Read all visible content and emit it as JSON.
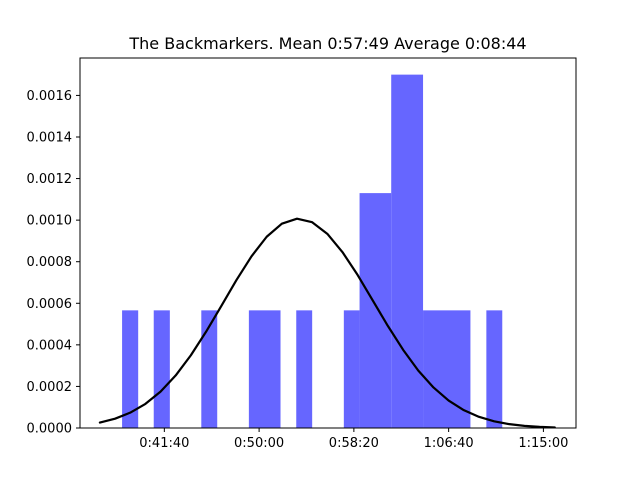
{
  "chart_data": {
    "type": "bar",
    "title": "The Backmarkers. Mean 0:57:49 Average 0:08:44",
    "xlabel": "",
    "ylabel": "",
    "x_unit": "seconds",
    "xlim": [
      2055,
      4672
    ],
    "ylim": [
      0,
      0.00178
    ],
    "x_ticks": [
      {
        "value": 2500,
        "label": "0:41:40"
      },
      {
        "value": 3000,
        "label": "0:50:00"
      },
      {
        "value": 3500,
        "label": "0:58:20"
      },
      {
        "value": 4000,
        "label": "1:06:40"
      },
      {
        "value": 4500,
        "label": "1:15:00"
      }
    ],
    "y_ticks": [
      {
        "value": 0.0,
        "label": "0.0000"
      },
      {
        "value": 0.0002,
        "label": "0.0002"
      },
      {
        "value": 0.0004,
        "label": "0.0004"
      },
      {
        "value": 0.0006,
        "label": "0.0006"
      },
      {
        "value": 0.0008,
        "label": "0.0008"
      },
      {
        "value": 0.001,
        "label": "0.0010"
      },
      {
        "value": 0.0012,
        "label": "0.0012"
      },
      {
        "value": 0.0014,
        "label": "0.0014"
      },
      {
        "value": 0.0016,
        "label": "0.0016"
      }
    ],
    "series": [
      {
        "kind": "histogram",
        "color": "#6666ff",
        "bins": [
          {
            "x0": 2277,
            "x1": 2362,
            "density": 0.000566
          },
          {
            "x0": 2444,
            "x1": 2529,
            "density": 0.000566
          },
          {
            "x0": 2695,
            "x1": 2779,
            "density": 0.000566
          },
          {
            "x0": 2946,
            "x1": 3113,
            "density": 0.000566
          },
          {
            "x0": 3196,
            "x1": 3280,
            "density": 0.000566
          },
          {
            "x0": 3447,
            "x1": 3530,
            "density": 0.000566
          },
          {
            "x0": 3530,
            "x1": 3697,
            "density": 0.00113
          },
          {
            "x0": 3697,
            "x1": 3865,
            "density": 0.0017
          },
          {
            "x0": 3865,
            "x1": 4115,
            "density": 0.000566
          },
          {
            "x0": 4199,
            "x1": 4283,
            "density": 0.000566
          }
        ]
      },
      {
        "kind": "line",
        "color": "#000000",
        "points": [
          [
            2160,
            2.62e-05
          ],
          [
            2240,
            4.49e-05
          ],
          [
            2320,
            7.38e-05
          ],
          [
            2400,
            0.000116
          ],
          [
            2480,
            0.000175
          ],
          [
            2560,
            0.000253
          ],
          [
            2640,
            0.00035
          ],
          [
            2720,
            0.000463
          ],
          [
            2800,
            0.000586
          ],
          [
            2880,
            0.000711
          ],
          [
            2960,
            0.000826
          ],
          [
            3040,
            0.00092
          ],
          [
            3120,
            0.000983
          ],
          [
            3200,
            0.001007
          ],
          [
            3280,
            0.00099
          ],
          [
            3360,
            0.000934
          ],
          [
            3440,
            0.000846
          ],
          [
            3520,
            0.000736
          ],
          [
            3600,
            0.000613
          ],
          [
            3680,
            0.00049
          ],
          [
            3760,
            0.000376
          ],
          [
            3840,
            0.000276
          ],
          [
            3920,
            0.000195
          ],
          [
            4000,
            0.000132
          ],
          [
            4080,
            8.59e-05
          ],
          [
            4160,
            5.37e-05
          ],
          [
            4240,
            3.22e-05
          ],
          [
            4320,
            1.85e-05
          ],
          [
            4400,
            1.02e-05
          ],
          [
            4480,
            5.38e-06
          ],
          [
            4560,
            2.73e-06
          ]
        ]
      }
    ]
  }
}
